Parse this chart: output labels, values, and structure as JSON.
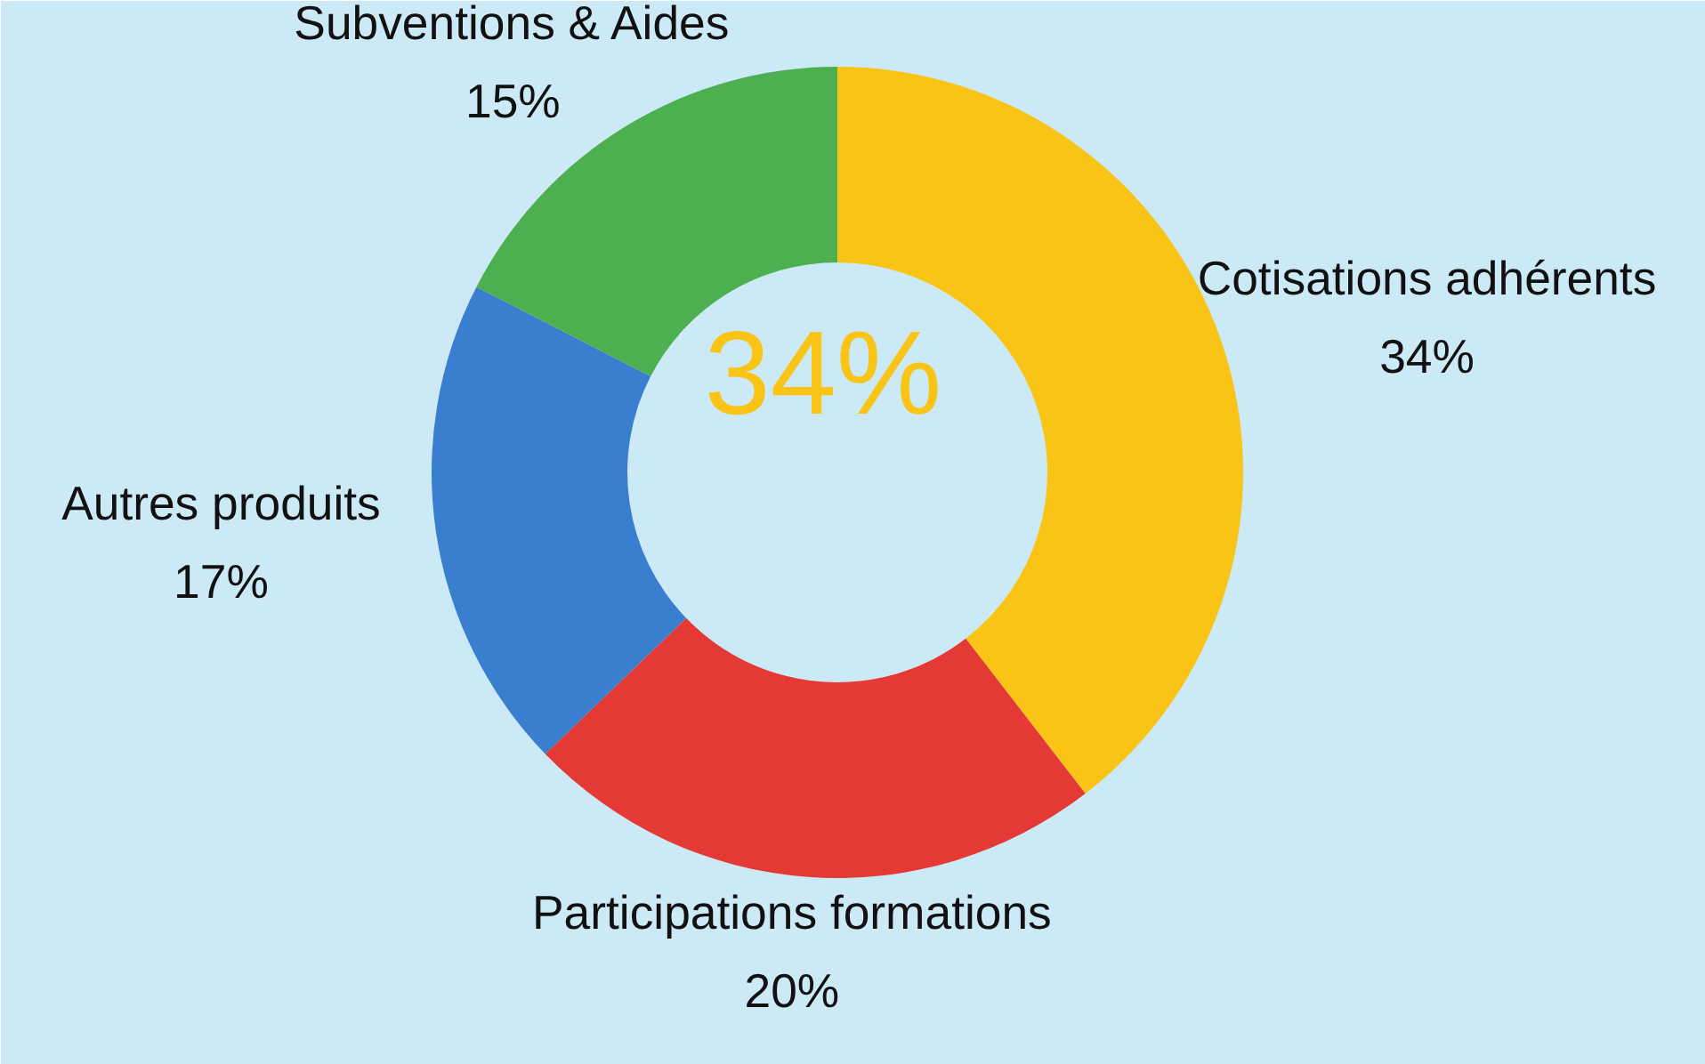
{
  "chart_data": {
    "type": "donut",
    "categories": [
      "Cotisations adhérents",
      "Participations formations",
      "Autres produits",
      "Subventions & Aides"
    ],
    "values": [
      34,
      20,
      17,
      15
    ],
    "colors": [
      "#f9c416",
      "#e53935",
      "#3a7fcf",
      "#4caf50"
    ],
    "value_labels": [
      "34%",
      "20%",
      "17%",
      "15%"
    ],
    "annotations": [
      "34%"
    ]
  }
}
